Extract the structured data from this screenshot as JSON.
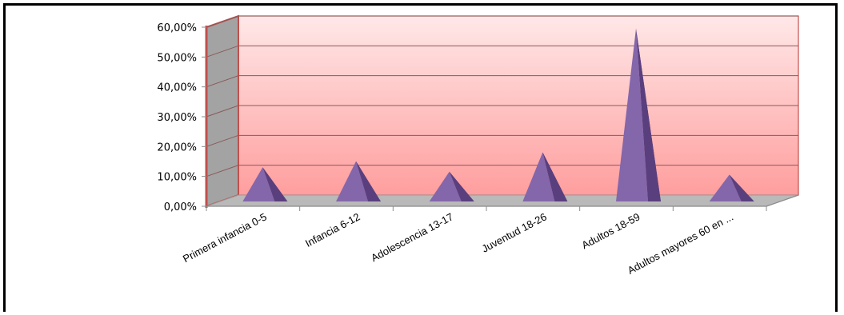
{
  "chart_data": {
    "type": "bar",
    "style": "3d-pyramid",
    "title": "",
    "xlabel": "",
    "ylabel": "",
    "categories": [
      "Primera infancia 0-5",
      "Infancia 6-12",
      "Adolescencia 13-17",
      "Juventud 18-26",
      "Adultos 18-59",
      "Adultos mayores 60 en ..."
    ],
    "values": [
      12,
      14,
      10.5,
      17,
      58.5,
      9.5
    ],
    "ylim": [
      0,
      60
    ],
    "yticks": [
      "0,00%",
      "10,00%",
      "20,00%",
      "30,00%",
      "40,00%",
      "50,00%",
      "60,00%"
    ],
    "grid": true,
    "legend": "none",
    "colors": {
      "pyramid_front": "#8466aa",
      "pyramid_side": "#5a3f7e",
      "back_wall_top": "#ffe8e8",
      "back_wall_bottom": "#ff9e9e",
      "side_wall": "#a3a3a3",
      "floor": "#b9b9b9",
      "wall_edge": "#c0504d"
    }
  }
}
